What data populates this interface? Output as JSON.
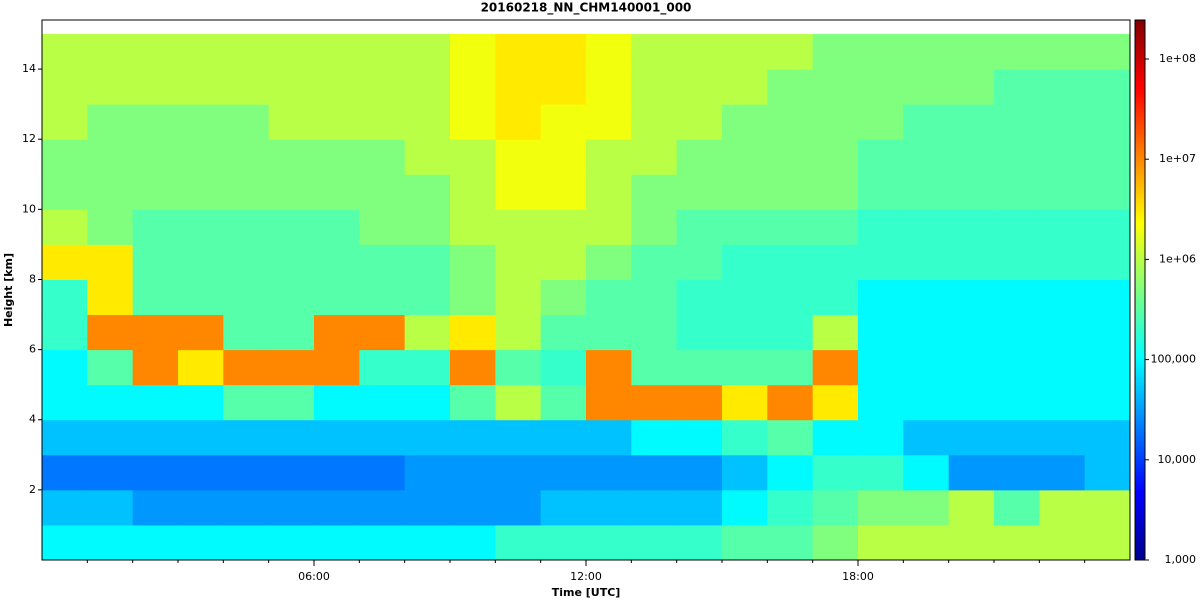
{
  "chart_data": {
    "type": "heatmap",
    "title": "20160218_NN_CHM140001_000",
    "xlabel": "Time [UTC]",
    "ylabel": "Height [km]",
    "xlim": [
      0,
      24
    ],
    "ylim": [
      0,
      15.4
    ],
    "xticks": [
      {
        "value": 6,
        "label": "06:00"
      },
      {
        "value": 12,
        "label": "12:00"
      },
      {
        "value": 18,
        "label": "18:00"
      }
    ],
    "xminorticks": [
      1,
      2,
      3,
      4,
      5,
      7,
      8,
      9,
      10,
      11,
      13,
      14,
      15,
      16,
      17,
      19,
      20,
      21,
      22,
      23
    ],
    "yticks": [
      2,
      4,
      6,
      8,
      10,
      12,
      14
    ],
    "colormap": "jet",
    "color_scale": "log",
    "clim": [
      1000,
      245000000
    ],
    "cticks": [
      {
        "value": 1000,
        "label": "1,000"
      },
      {
        "value": 10000,
        "label": "10,000"
      },
      {
        "value": 100000,
        "label": "100,000"
      },
      {
        "value": 1000000,
        "label": "1e+06"
      },
      {
        "value": 10000000,
        "label": "1e+07"
      },
      {
        "value": 100000000,
        "label": "1e+08"
      }
    ],
    "xbins": [
      0,
      1,
      2,
      3,
      4,
      5,
      6,
      7,
      8,
      9,
      10,
      11,
      12,
      13,
      14,
      15,
      16,
      17,
      18,
      19,
      20,
      21,
      22,
      23,
      24
    ],
    "ybins": [
      0,
      1,
      2,
      3,
      4,
      5,
      6,
      7,
      8,
      9,
      10,
      11,
      12,
      13,
      14,
      15
    ],
    "z": [
      [
        100000.0,
        100000.0,
        100000.0,
        100000.0,
        100000.0,
        100000.0,
        100000.0,
        100000.0,
        100000.0,
        100000.0,
        200000.0,
        200000.0,
        200000.0,
        200000.0,
        200000.0,
        300000.0,
        300000.0,
        500000.0,
        1000000.0,
        1000000.0,
        1000000.0,
        1000000.0,
        1000000.0,
        1000000.0
      ],
      [
        50000.0,
        50000.0,
        30000.0,
        30000.0,
        30000.0,
        30000.0,
        30000.0,
        30000.0,
        30000.0,
        30000.0,
        30000.0,
        50000.0,
        50000.0,
        50000.0,
        50000.0,
        100000.0,
        200000.0,
        300000.0,
        500000.0,
        500000.0,
        1000000.0,
        300000.0,
        1000000.0,
        1000000.0
      ],
      [
        20000.0,
        20000.0,
        20000.0,
        20000.0,
        20000.0,
        20000.0,
        20000.0,
        20000.0,
        30000.0,
        30000.0,
        30000.0,
        30000.0,
        30000.0,
        30000.0,
        30000.0,
        50000.0,
        100000.0,
        200000.0,
        200000.0,
        100000.0,
        30000.0,
        30000.0,
        30000.0,
        50000.0
      ],
      [
        50000.0,
        50000.0,
        50000.0,
        50000.0,
        50000.0,
        50000.0,
        50000.0,
        50000.0,
        50000.0,
        50000.0,
        50000.0,
        50000.0,
        50000.0,
        100000.0,
        100000.0,
        200000.0,
        300000.0,
        100000.0,
        100000.0,
        50000.0,
        50000.0,
        50000.0,
        50000.0,
        50000.0
      ],
      [
        100000.0,
        100000.0,
        100000.0,
        100000.0,
        300000.0,
        300000.0,
        100000.0,
        100000.0,
        100000.0,
        300000.0,
        1000000.0,
        300000.0,
        10000000.0,
        10000000.0,
        10000000.0,
        3000000.0,
        10000000.0,
        3000000.0,
        100000.0,
        100000.0,
        100000.0,
        100000.0,
        100000.0,
        100000.0
      ],
      [
        100000.0,
        300000.0,
        10000000.0,
        3000000.0,
        10000000.0,
        10000000.0,
        10000000.0,
        200000.0,
        200000.0,
        10000000.0,
        300000.0,
        200000.0,
        10000000.0,
        300000.0,
        300000.0,
        300000.0,
        300000.0,
        10000000.0,
        100000.0,
        100000.0,
        100000.0,
        100000.0,
        100000.0,
        100000.0
      ],
      [
        200000.0,
        10000000.0,
        10000000.0,
        10000000.0,
        300000.0,
        300000.0,
        10000000.0,
        10000000.0,
        1000000.0,
        3000000.0,
        1000000.0,
        300000.0,
        300000.0,
        300000.0,
        200000.0,
        200000.0,
        200000.0,
        1000000.0,
        100000.0,
        100000.0,
        100000.0,
        100000.0,
        100000.0,
        100000.0
      ],
      [
        200000.0,
        3000000.0,
        300000.0,
        300000.0,
        300000.0,
        300000.0,
        300000.0,
        300000.0,
        300000.0,
        500000.0,
        1000000.0,
        500000.0,
        300000.0,
        300000.0,
        200000.0,
        200000.0,
        200000.0,
        200000.0,
        100000.0,
        100000.0,
        100000.0,
        100000.0,
        100000.0,
        100000.0
      ],
      [
        3000000.0,
        3000000.0,
        300000.0,
        300000.0,
        300000.0,
        300000.0,
        300000.0,
        300000.0,
        300000.0,
        500000.0,
        1000000.0,
        1000000.0,
        500000.0,
        300000.0,
        300000.0,
        200000.0,
        200000.0,
        200000.0,
        200000.0,
        200000.0,
        200000.0,
        200000.0,
        200000.0,
        200000.0
      ],
      [
        1000000.0,
        500000.0,
        300000.0,
        300000.0,
        300000.0,
        300000.0,
        300000.0,
        500000.0,
        500000.0,
        1000000.0,
        1000000.0,
        1000000.0,
        1000000.0,
        500000.0,
        300000.0,
        300000.0,
        300000.0,
        300000.0,
        200000.0,
        200000.0,
        200000.0,
        200000.0,
        200000.0,
        200000.0
      ],
      [
        500000.0,
        500000.0,
        500000.0,
        500000.0,
        500000.0,
        500000.0,
        500000.0,
        500000.0,
        500000.0,
        1000000.0,
        2000000.0,
        2000000.0,
        1000000.0,
        500000.0,
        500000.0,
        500000.0,
        500000.0,
        500000.0,
        300000.0,
        300000.0,
        300000.0,
        300000.0,
        300000.0,
        300000.0
      ],
      [
        500000.0,
        500000.0,
        500000.0,
        500000.0,
        500000.0,
        500000.0,
        500000.0,
        500000.0,
        1000000.0,
        1000000.0,
        2000000.0,
        2000000.0,
        1000000.0,
        1000000.0,
        500000.0,
        500000.0,
        500000.0,
        500000.0,
        300000.0,
        300000.0,
        300000.0,
        300000.0,
        300000.0,
        300000.0
      ],
      [
        1000000.0,
        500000.0,
        500000.0,
        500000.0,
        500000.0,
        1000000.0,
        1000000.0,
        1000000.0,
        1000000.0,
        2000000.0,
        3000000.0,
        2000000.0,
        2000000.0,
        1000000.0,
        1000000.0,
        500000.0,
        500000.0,
        500000.0,
        500000.0,
        300000.0,
        300000.0,
        300000.0,
        300000.0,
        300000.0
      ],
      [
        1000000.0,
        1000000.0,
        1000000.0,
        1000000.0,
        1000000.0,
        1000000.0,
        1000000.0,
        1000000.0,
        1000000.0,
        2000000.0,
        3000000.0,
        3000000.0,
        2000000.0,
        1000000.0,
        1000000.0,
        1000000.0,
        500000.0,
        500000.0,
        500000.0,
        500000.0,
        500000.0,
        300000.0,
        300000.0,
        300000.0
      ],
      [
        1000000.0,
        1000000.0,
        1000000.0,
        1000000.0,
        1000000.0,
        1000000.0,
        1000000.0,
        1000000.0,
        1000000.0,
        2000000.0,
        3000000.0,
        3000000.0,
        2000000.0,
        1000000.0,
        1000000.0,
        1000000.0,
        1000000.0,
        500000.0,
        500000.0,
        500000.0,
        500000.0,
        500000.0,
        500000.0,
        500000.0
      ]
    ]
  }
}
